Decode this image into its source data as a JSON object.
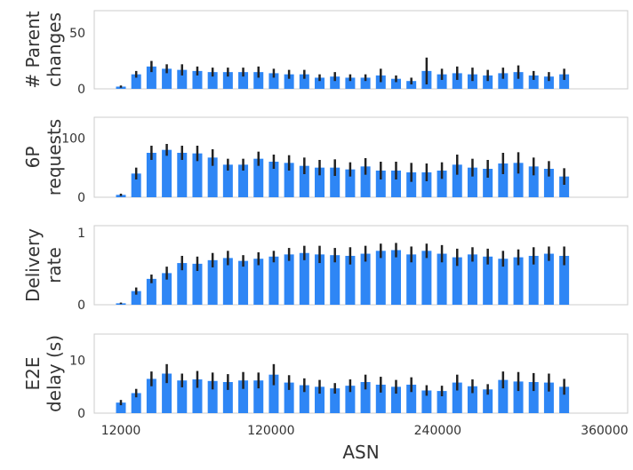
{
  "colors": {
    "bar": "#2e86f5",
    "error": "#222222",
    "frame": "#cccccc",
    "text": "#333333"
  },
  "chart_data": [
    {
      "type": "bar",
      "ylabel_lines": [
        "# Parent",
        "changes"
      ],
      "ylim": [
        0,
        70
      ],
      "yticks": [
        0,
        50
      ],
      "xlabel": "ASN",
      "x": [
        12000,
        23000,
        34000,
        45000,
        56000,
        67000,
        78000,
        89000,
        100000,
        111000,
        122000,
        133000,
        144000,
        155000,
        166000,
        177000,
        188000,
        199000,
        210000,
        221000,
        232000,
        243000,
        254000,
        265000,
        276000,
        287000,
        298000,
        309000,
        320000,
        331000,
        342000,
        353000
      ],
      "values": [
        2,
        13,
        20,
        18,
        17,
        16,
        15,
        15,
        15,
        15,
        14,
        13,
        13,
        10,
        11,
        10,
        10,
        12,
        9,
        7,
        16,
        13,
        14,
        13,
        12,
        14,
        15,
        12,
        11,
        13,
        0,
        0
      ],
      "errors": [
        1,
        3,
        5,
        4,
        5,
        4,
        4,
        4,
        4,
        5,
        4,
        4,
        4,
        3,
        4,
        3,
        3,
        6,
        3,
        3,
        12,
        5,
        6,
        6,
        5,
        5,
        6,
        4,
        4,
        5,
        0,
        0
      ]
    },
    {
      "type": "bar",
      "ylabel_lines": [
        "6P",
        "requests"
      ],
      "ylim": [
        0,
        135
      ],
      "yticks": [
        0,
        100
      ],
      "x": [
        12000,
        23000,
        34000,
        45000,
        56000,
        67000,
        78000,
        89000,
        100000,
        111000,
        122000,
        133000,
        144000,
        155000,
        166000,
        177000,
        188000,
        199000,
        210000,
        221000,
        232000,
        243000,
        254000,
        265000,
        276000,
        287000,
        298000,
        309000,
        320000,
        331000,
        342000,
        353000
      ],
      "values": [
        4,
        40,
        75,
        80,
        75,
        74,
        67,
        55,
        55,
        65,
        60,
        58,
        53,
        50,
        50,
        47,
        52,
        45,
        45,
        42,
        42,
        45,
        55,
        50,
        48,
        57,
        58,
        52,
        48,
        35,
        0,
        0
      ],
      "errors": [
        2,
        10,
        12,
        10,
        12,
        13,
        14,
        10,
        10,
        12,
        12,
        13,
        14,
        13,
        14,
        12,
        14,
        15,
        15,
        16,
        15,
        14,
        17,
        15,
        15,
        18,
        18,
        15,
        13,
        14,
        0,
        0
      ]
    },
    {
      "type": "bar",
      "ylabel_lines": [
        "Delivery",
        "rate"
      ],
      "ylim": [
        0,
        1.1
      ],
      "yticks": [
        0,
        1
      ],
      "x": [
        12000,
        23000,
        34000,
        45000,
        56000,
        67000,
        78000,
        89000,
        100000,
        111000,
        122000,
        133000,
        144000,
        155000,
        166000,
        177000,
        188000,
        199000,
        210000,
        221000,
        232000,
        243000,
        254000,
        265000,
        276000,
        287000,
        298000,
        309000,
        320000,
        331000,
        342000,
        353000
      ],
      "values": [
        0.02,
        0.19,
        0.36,
        0.44,
        0.58,
        0.57,
        0.62,
        0.65,
        0.61,
        0.64,
        0.67,
        0.7,
        0.72,
        0.7,
        0.69,
        0.68,
        0.71,
        0.75,
        0.76,
        0.7,
        0.75,
        0.71,
        0.66,
        0.7,
        0.67,
        0.64,
        0.66,
        0.68,
        0.71,
        0.68,
        0,
        0
      ],
      "errors": [
        0.01,
        0.05,
        0.06,
        0.09,
        0.1,
        0.1,
        0.1,
        0.1,
        0.08,
        0.09,
        0.08,
        0.09,
        0.1,
        0.12,
        0.1,
        0.12,
        0.11,
        0.1,
        0.1,
        0.11,
        0.1,
        0.12,
        0.12,
        0.1,
        0.11,
        0.11,
        0.11,
        0.12,
        0.1,
        0.13,
        0,
        0
      ]
    },
    {
      "type": "bar",
      "ylabel_lines": [
        "E2E",
        "delay (s)"
      ],
      "ylim": [
        0,
        15
      ],
      "yticks": [
        0,
        10
      ],
      "xticks": [
        12000,
        120000,
        240000,
        360000
      ],
      "xticklabels": [
        "12000",
        "120000",
        "240000",
        "360000"
      ],
      "xlabel": "ASN",
      "x": [
        12000,
        23000,
        34000,
        45000,
        56000,
        67000,
        78000,
        89000,
        100000,
        111000,
        122000,
        133000,
        144000,
        155000,
        166000,
        177000,
        188000,
        199000,
        210000,
        221000,
        232000,
        243000,
        254000,
        265000,
        276000,
        287000,
        298000,
        309000,
        320000,
        331000,
        342000,
        353000
      ],
      "values": [
        2.0,
        3.8,
        6.5,
        7.5,
        6.2,
        6.4,
        6.1,
        5.9,
        6.2,
        6.2,
        7.3,
        5.8,
        5.3,
        5.0,
        4.7,
        5.2,
        5.9,
        5.4,
        5.0,
        5.4,
        4.3,
        4.2,
        5.8,
        5.1,
        4.5,
        6.3,
        6.0,
        5.9,
        5.8,
        5.0,
        0,
        0
      ],
      "errors": [
        0.5,
        0.8,
        1.4,
        1.8,
        1.3,
        1.6,
        1.6,
        1.5,
        1.6,
        1.5,
        2.0,
        1.4,
        1.3,
        1.3,
        1.0,
        1.2,
        1.4,
        1.5,
        1.3,
        1.4,
        1.0,
        1.0,
        1.5,
        1.3,
        1.0,
        1.6,
        1.8,
        1.7,
        1.7,
        1.5,
        0,
        0
      ]
    }
  ]
}
